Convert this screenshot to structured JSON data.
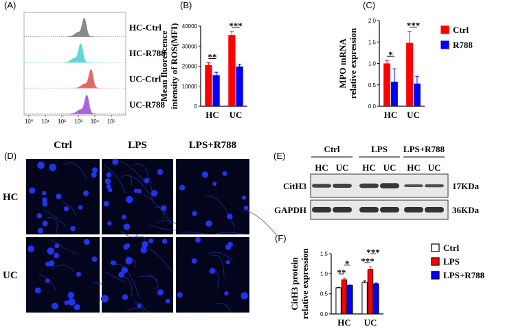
{
  "chart_data": [
    {
      "type": "flow",
      "panel": "(A)",
      "log_x": true,
      "xlim": [
        1,
        100000
      ],
      "xticks": [
        {
          "value": 1,
          "label": "10⁰"
        },
        {
          "value": 10,
          "label": "10¹"
        },
        {
          "value": 100,
          "label": "10²"
        },
        {
          "value": 1000,
          "label": "10³"
        },
        {
          "value": 10000,
          "label": "10⁴"
        },
        {
          "value": 100000,
          "label": "10⁵"
        }
      ],
      "samples": [
        {
          "name": "HC-Ctrl",
          "color": "#8a8a8a",
          "peak": 2300
        },
        {
          "name": "HC-R788",
          "color": "#5fd6da",
          "peak": 1400
        },
        {
          "name": "UC-Ctrl",
          "color": "#e06b6b",
          "peak": 5900
        },
        {
          "name": "UC-R788",
          "color": "#a866d8",
          "peak": 3300
        }
      ]
    },
    {
      "type": "bar",
      "panel": "(B)",
      "ylabel": [
        "Mean fluorescence",
        "intensity of ROS(MFI)"
      ],
      "categories": [
        "HC",
        "UC"
      ],
      "series": [
        {
          "name": "Ctrl",
          "color": "#ff0000",
          "values": [
            20500,
            35500
          ],
          "errors": [
            1200,
            1800
          ]
        },
        {
          "name": "R788",
          "color": "#0000ff",
          "values": [
            15500,
            19800
          ],
          "errors": [
            1500,
            1200
          ]
        }
      ],
      "ylim": [
        0,
        40000
      ],
      "yticks": [
        0,
        10000,
        20000,
        30000,
        40000
      ],
      "annotations": [
        {
          "text": "**",
          "category": 0,
          "from": 0,
          "to": 1
        },
        {
          "text": "***",
          "category": 1,
          "from": 0,
          "to": 1
        }
      ]
    },
    {
      "type": "bar",
      "panel": "(C)",
      "ylabel": [
        "MPO mRNA",
        "relative expression"
      ],
      "categories": [
        "HC",
        "UC"
      ],
      "legend": "right",
      "series": [
        {
          "name": "Ctrl",
          "color": "#ff0000",
          "values": [
            1.0,
            1.48
          ],
          "errors": [
            0.07,
            0.27
          ]
        },
        {
          "name": "R788",
          "color": "#0000ff",
          "values": [
            0.57,
            0.53
          ],
          "errors": [
            0.3,
            0.17
          ]
        }
      ],
      "ylim": [
        0,
        2
      ],
      "yticks": [
        {
          "value": 0,
          "label": "0.0"
        },
        0.5,
        {
          "value": 1,
          "label": "1.0"
        },
        1.5,
        {
          "value": 2,
          "label": "2.0"
        }
      ],
      "annotations": [
        {
          "text": "*",
          "category": 0,
          "from": 0,
          "to": 1
        },
        {
          "text": "***",
          "category": 1,
          "from": 0,
          "to": 1
        }
      ]
    },
    {
      "type": "bar",
      "panel": "(F)",
      "ylabel": [
        "CitH3 protein",
        "relative expression"
      ],
      "categories": [
        "HC",
        "UC"
      ],
      "legend": "right",
      "bar_edge": "#000000",
      "series": [
        {
          "name": "Ctrl",
          "color": "#ffffff",
          "values": [
            0.65,
            0.78
          ],
          "errors": [
            0.01,
            0.04
          ]
        },
        {
          "name": "LPS",
          "color": "#ff0000",
          "values": [
            0.85,
            1.1
          ],
          "errors": [
            0.04,
            0.07
          ]
        },
        {
          "name": "LPS+R788",
          "color": "#0000ff",
          "values": [
            0.71,
            0.75
          ],
          "errors": [
            0.01,
            0.02
          ]
        }
      ],
      "ylim": [
        0,
        1.5
      ],
      "yticks": [
        {
          "value": 0,
          "label": "0.0"
        },
        0.5,
        {
          "value": 1,
          "label": "1.0"
        },
        1.5
      ],
      "annotations": [
        {
          "text": "**",
          "category": 0,
          "from": 0,
          "to": 1
        },
        {
          "text": "*",
          "category": 0,
          "from": 1,
          "to": 2
        },
        {
          "text": "***",
          "category": 1,
          "from": 0,
          "to": 1
        },
        {
          "text": "***",
          "category": 1,
          "from": 1,
          "to": 2
        }
      ]
    }
  ],
  "micrograph": {
    "panel": "(D)",
    "columns": [
      "Ctrl",
      "LPS",
      "LPS+R788"
    ],
    "rows": [
      "HC",
      "UC"
    ]
  },
  "western_blot": {
    "panel": "(E)",
    "groups": [
      "Ctrl",
      "LPS",
      "LPS+R788"
    ],
    "lanes": [
      "HC",
      "UC",
      "HC",
      "UC",
      "HC",
      "UC"
    ],
    "bands": [
      {
        "name": "CitH3",
        "size": "17KDa"
      },
      {
        "name": "GAPDH",
        "size": "36KDa"
      }
    ]
  }
}
